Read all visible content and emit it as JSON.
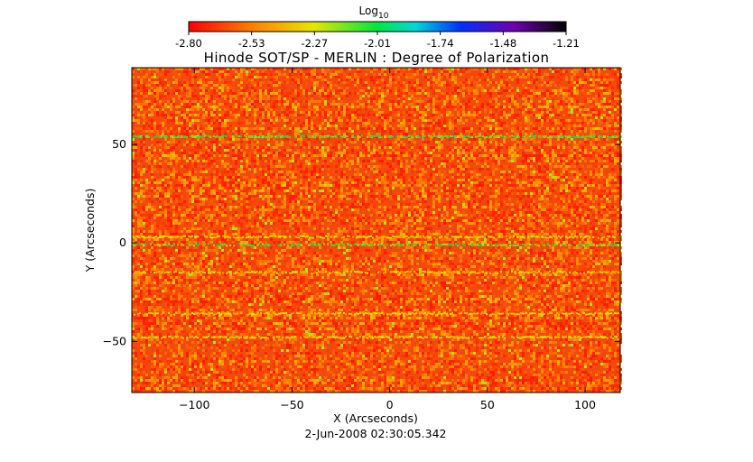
{
  "chart_data": {
    "type": "heatmap",
    "title": "Hinode SOT/SP - MERLIN : Degree of Polarization",
    "xlabel": "X (Arcseconds)",
    "ylabel": "Y (Arcseconds)",
    "xlim": [
      -132,
      118
    ],
    "ylim": [
      -76,
      89
    ],
    "xticks": [
      -100,
      -50,
      0,
      50,
      100
    ],
    "yticks": [
      -50,
      0,
      50
    ],
    "footer": "2-Jun-2008 02:30:05.342",
    "colorbar": {
      "label_base": "Log",
      "label_sub": "10",
      "ticks": [
        "-2.80",
        "-2.53",
        "-2.27",
        "-2.01",
        "-1.74",
        "-1.48",
        "-1.21"
      ],
      "range": [
        -2.8,
        -1.21
      ],
      "colormap": "rainbow (red to black)"
    },
    "background_level_range": [
      -2.8,
      -2.4
    ],
    "bright_lanes": [
      {
        "y": 54,
        "level": -2.05
      },
      {
        "y": -1,
        "level": -2.1
      },
      {
        "y": 3,
        "level": -2.3
      },
      {
        "y": -15,
        "level": -2.35
      },
      {
        "y": -36,
        "level": -2.35
      },
      {
        "y": -48,
        "level": -2.3
      }
    ]
  }
}
